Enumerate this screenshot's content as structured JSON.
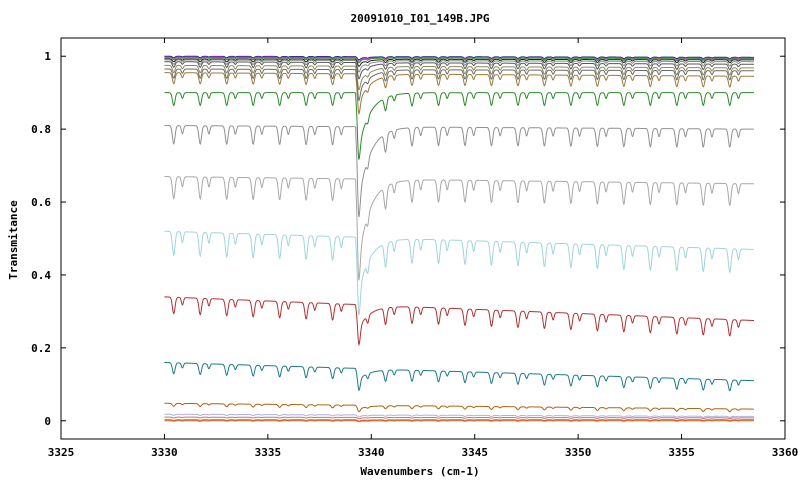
{
  "chart_data": {
    "type": "line",
    "title": "20091010_I01_149B.JPG",
    "xlabel": "Wavenumbers (cm-1)",
    "ylabel": "Transmitance",
    "xlim": [
      3325,
      3360
    ],
    "ylim": [
      -0.05,
      1.05
    ],
    "x_ticks": [
      3325,
      3330,
      3335,
      3340,
      3345,
      3350,
      3355,
      3360
    ],
    "x_tick_labels": [
      "3325",
      "3330",
      "3335",
      "3340",
      "3345",
      "3350",
      "3355",
      "3360"
    ],
    "y_ticks": [
      0,
      0.2,
      0.4,
      0.6,
      0.8,
      1
    ],
    "y_tick_labels": [
      "0",
      "0.2",
      "0.4",
      "0.6",
      "0.8",
      "1"
    ],
    "grid": false,
    "legend": "none",
    "x_range": [
      3330,
      3358.5
    ],
    "main_dip_x": 3339.4,
    "series": [
      {
        "color": "#1a1a80",
        "start": 1.0,
        "end": 0.997,
        "dip_depth": 0.004,
        "main_dip": 0.005
      },
      {
        "color": "#cc44cc",
        "start": 0.998,
        "end": 0.995,
        "dip_depth": 0.005,
        "main_dip": 0.006
      },
      {
        "color": "#3a9a3a",
        "start": 0.997,
        "end": 0.993,
        "dip_depth": 0.006,
        "main_dip": 0.008
      },
      {
        "color": "#222222",
        "start": 0.993,
        "end": 0.99,
        "dip_depth": 0.008,
        "main_dip": 0.012
      },
      {
        "color": "#888888",
        "start": 0.99,
        "end": 0.985,
        "dip_depth": 0.012,
        "main_dip": 0.02
      },
      {
        "color": "#555555",
        "start": 0.985,
        "end": 0.978,
        "dip_depth": 0.015,
        "main_dip": 0.03
      },
      {
        "color": "#8a8a5a",
        "start": 0.975,
        "end": 0.968,
        "dip_depth": 0.02,
        "main_dip": 0.045
      },
      {
        "color": "#6a6a6a",
        "start": 0.965,
        "end": 0.96,
        "dip_depth": 0.025,
        "main_dip": 0.06
      },
      {
        "color": "#9a7a3a",
        "start": 0.955,
        "end": 0.945,
        "dip_depth": 0.03,
        "main_dip": 0.08
      },
      {
        "color": "#2a8a2a",
        "start": 0.9,
        "end": 0.9,
        "dip_depth": 0.035,
        "main_dip": 0.15
      },
      {
        "color": "#909090",
        "start": 0.81,
        "end": 0.8,
        "dip_depth": 0.05,
        "main_dip": 0.2
      },
      {
        "color": "#a8a8a8",
        "start": 0.67,
        "end": 0.65,
        "dip_depth": 0.06,
        "main_dip": 0.22
      },
      {
        "color": "#a0d4dc",
        "start": 0.52,
        "end": 0.47,
        "dip_depth": 0.065,
        "main_dip": 0.15
      },
      {
        "color": "#b03030",
        "start": 0.34,
        "end": 0.275,
        "dip_depth": 0.045,
        "main_dip": 0.065
      },
      {
        "color": "#1a7a8a",
        "start": 0.16,
        "end": 0.11,
        "dip_depth": 0.03,
        "main_dip": 0.03
      },
      {
        "color": "#b06010",
        "start": 0.048,
        "end": 0.032,
        "dip_depth": 0.008,
        "main_dip": 0.01
      },
      {
        "color": "#b0b0d8",
        "start": 0.018,
        "end": 0.012,
        "dip_depth": 0.003,
        "main_dip": 0.003
      },
      {
        "color": "#d07070",
        "start": 0.01,
        "end": 0.008,
        "dip_depth": 0.002,
        "main_dip": 0.002
      },
      {
        "color": "#e07030",
        "start": 0.003,
        "end": 0.003,
        "dip_depth": 0.002,
        "main_dip": 0.002
      },
      {
        "color": "#c06020",
        "start": 0.0,
        "end": 0.0,
        "dip_depth": 0.001,
        "main_dip": 0.001
      }
    ]
  }
}
